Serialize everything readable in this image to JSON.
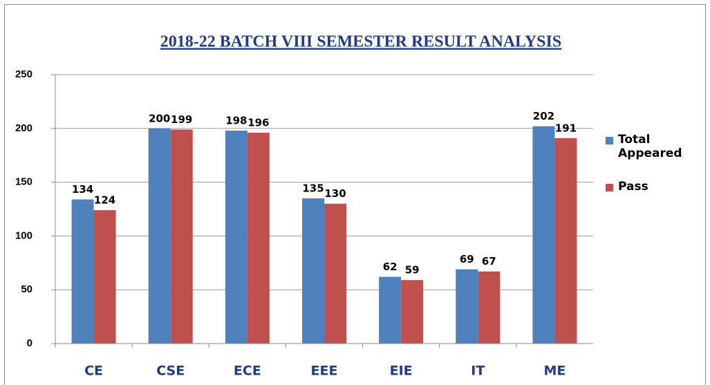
{
  "chart_data": {
    "type": "bar",
    "title": "2018-22 BATCH  VIII SEMESTER RESULT ANALYSIS",
    "categories": [
      "CE",
      "CSE",
      "ECE",
      "EEE",
      "EIE",
      "IT",
      "ME"
    ],
    "series": [
      {
        "name": "Total Appeared",
        "color": "#4f81bd",
        "values": [
          134,
          200,
          198,
          135,
          62,
          69,
          202
        ]
      },
      {
        "name": "Pass",
        "color": "#c0504d",
        "values": [
          124,
          199,
          196,
          130,
          59,
          67,
          191
        ]
      }
    ],
    "ylim": [
      0,
      250
    ],
    "yticks": [
      0,
      50,
      100,
      150,
      200,
      250
    ],
    "grid": true,
    "legend": "right"
  }
}
